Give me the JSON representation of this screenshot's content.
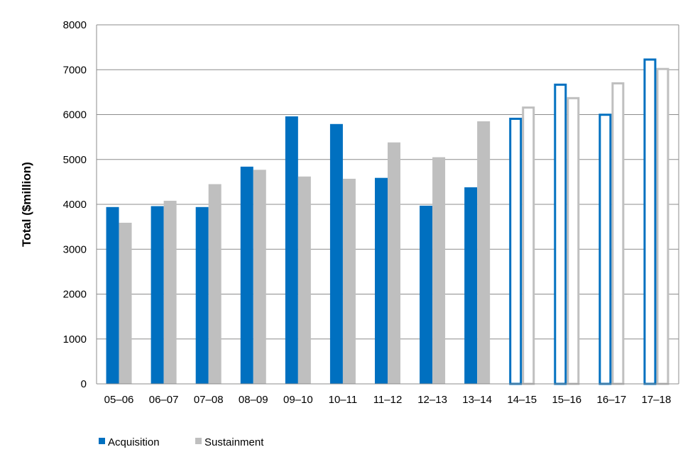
{
  "chart_data": {
    "type": "bar",
    "ylabel": "Total ($million)",
    "xlabel": "",
    "title": "",
    "ylim": [
      0,
      8000
    ],
    "yticks": [
      0,
      1000,
      2000,
      3000,
      4000,
      5000,
      6000,
      7000,
      8000
    ],
    "grid": true,
    "legend_position": "bottom-left",
    "categories": [
      "05–06",
      "06–07",
      "07–08",
      "08–09",
      "09–10",
      "10–11",
      "11–12",
      "12–13",
      "13–14",
      "14–15",
      "15–16",
      "16–17",
      "17–18"
    ],
    "series": [
      {
        "name": "Acquisition",
        "color": "#0070C0",
        "values": [
          3940,
          3960,
          3940,
          4840,
          5960,
          5790,
          4590,
          3970,
          4380,
          5930,
          6690,
          6020,
          7250
        ]
      },
      {
        "name": "Sustainment",
        "color": "#BFBFBF",
        "values": [
          3590,
          4080,
          4450,
          4770,
          4620,
          4570,
          5380,
          5050,
          5850,
          6180,
          6390,
          6720,
          7040
        ]
      }
    ],
    "outline_from_index": 9
  }
}
